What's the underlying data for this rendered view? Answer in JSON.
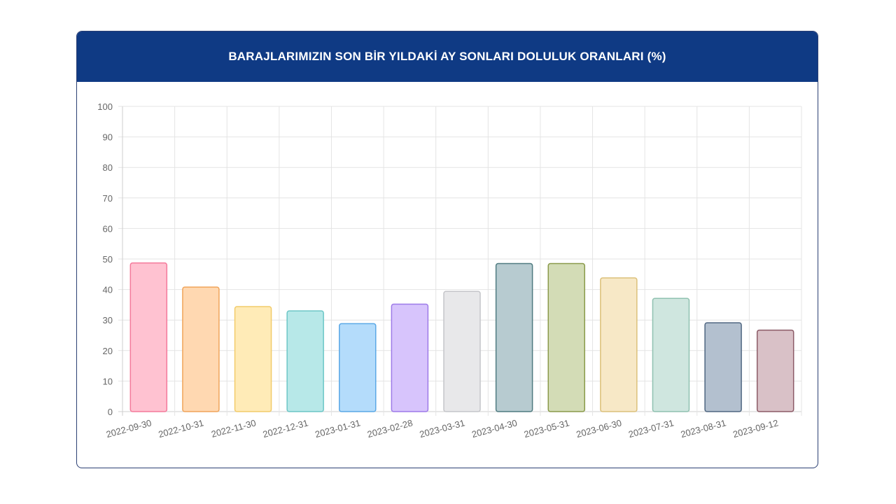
{
  "title": "BARAJLARIMIZIN SON BİR YILDAKİ AY SONLARI DOLULUK ORANLARI (%)",
  "chart_data": {
    "type": "bar",
    "title": "BARAJLARIMIZIN SON BİR YILDAKİ AY SONLARI DOLULUK ORANLARI (%)",
    "categories": [
      "2022-09-30",
      "2022-10-31",
      "2022-11-30",
      "2022-12-31",
      "2023-01-31",
      "2023-02-28",
      "2023-03-31",
      "2023-04-30",
      "2023-05-31",
      "2023-06-30",
      "2023-07-31",
      "2023-08-31",
      "2023-09-12"
    ],
    "values": [
      48.7,
      40.8,
      34.4,
      33.0,
      28.8,
      35.2,
      39.4,
      48.5,
      48.5,
      43.8,
      37.1,
      29.1,
      26.7
    ],
    "ylim": [
      0,
      100
    ],
    "yticks": [
      0,
      10,
      20,
      30,
      40,
      50,
      60,
      70,
      80,
      90,
      100
    ],
    "grid": true,
    "legend": "none",
    "colors": [
      {
        "fill": "#ffc2d1",
        "stroke": "#f47a9b"
      },
      {
        "fill": "#ffd8b1",
        "stroke": "#f0a45a"
      },
      {
        "fill": "#ffebb7",
        "stroke": "#f2cb6a"
      },
      {
        "fill": "#b7e8e8",
        "stroke": "#6cc6c6"
      },
      {
        "fill": "#b4dcfb",
        "stroke": "#5aa8e6"
      },
      {
        "fill": "#d7c4fc",
        "stroke": "#9d7ae8"
      },
      {
        "fill": "#e8e8ea",
        "stroke": "#c4c5c9"
      },
      {
        "fill": "#b7cbd0",
        "stroke": "#4f7b80"
      },
      {
        "fill": "#d3dcb6",
        "stroke": "#8a9a4a"
      },
      {
        "fill": "#f7e8c6",
        "stroke": "#dcc07a"
      },
      {
        "fill": "#cfe6df",
        "stroke": "#8fc1b0"
      },
      {
        "fill": "#b3c0cf",
        "stroke": "#4f6681"
      },
      {
        "fill": "#d9c1c7",
        "stroke": "#8c5b67"
      }
    ]
  }
}
